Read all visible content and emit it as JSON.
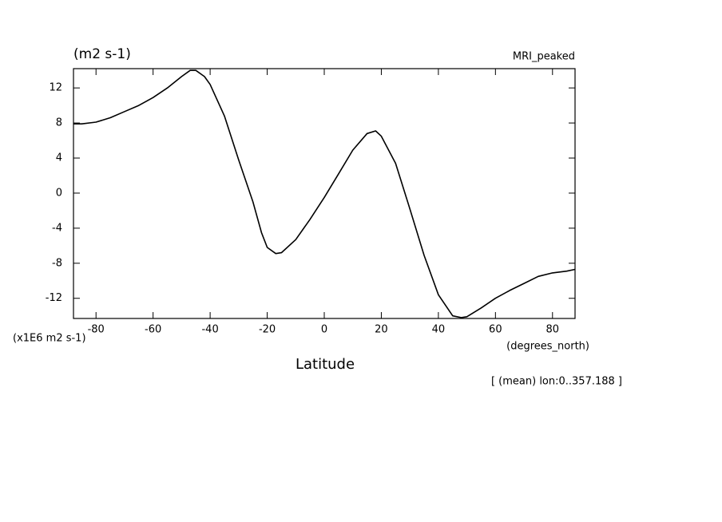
{
  "chart_data": {
    "type": "line",
    "title": "MRI_peaked",
    "y_unit_label": "(m2 s-1)",
    "y_scale_label": "(x1E6 m2 s-1)",
    "x_unit_label": "(degrees_north)",
    "x_label": "Latitude",
    "annotation": "[ (mean) lon:0..357.188 ]",
    "x": [
      -87.9,
      -85,
      -80,
      -75,
      -70,
      -65,
      -60,
      -55,
      -50,
      -47,
      -45,
      -42,
      -40,
      -35,
      -30,
      -25,
      -22,
      -20,
      -17,
      -15,
      -10,
      -5,
      0,
      5,
      10,
      15,
      18,
      20,
      25,
      30,
      35,
      40,
      45,
      48,
      50,
      55,
      60,
      65,
      70,
      75,
      80,
      85,
      87.9
    ],
    "series": [
      {
        "name": "MRI_peaked",
        "color": "#000000",
        "values": [
          7.9,
          7.9,
          8.1,
          8.6,
          9.3,
          10.0,
          10.9,
          12.0,
          13.3,
          14.0,
          14.0,
          13.3,
          12.4,
          8.8,
          3.8,
          -1.0,
          -4.5,
          -6.2,
          -6.9,
          -6.8,
          -5.3,
          -3.0,
          -0.5,
          2.2,
          4.9,
          6.8,
          7.1,
          6.5,
          3.4,
          -1.8,
          -7.1,
          -11.6,
          -14.0,
          -14.2,
          -14.1,
          -13.1,
          -12.0,
          -11.1,
          -10.3,
          -9.5,
          -9.1,
          -8.9,
          -8.7
        ]
      }
    ],
    "xlim": [
      -87.9,
      87.9
    ],
    "ylim": [
      -14.3,
      14.2
    ],
    "xticks": [
      -80,
      -60,
      -40,
      -20,
      0,
      20,
      40,
      60,
      80
    ],
    "yticks": [
      -12,
      -8,
      -4,
      0,
      4,
      8,
      12
    ]
  }
}
